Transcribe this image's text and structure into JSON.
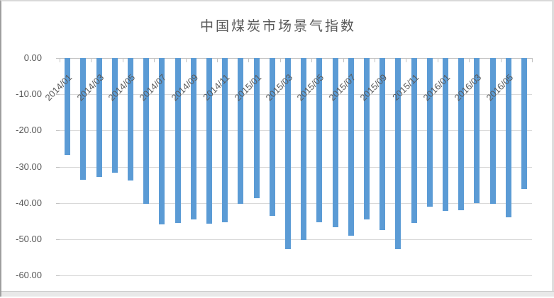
{
  "chart_data": {
    "type": "bar",
    "title": "中国煤炭市场景气指数",
    "categories": [
      "2014/01",
      "2014/02",
      "2014/03",
      "2014/04",
      "2014/05",
      "2014/06",
      "2014/07",
      "2014/08",
      "2014/09",
      "2014/10",
      "2014/11",
      "2014/12",
      "2015/01",
      "2015/02",
      "2015/03",
      "2015/04",
      "2015/05",
      "2015/06",
      "2015/07",
      "2015/08",
      "2015/09",
      "2015/10",
      "2015/11",
      "2015/12",
      "2016/01",
      "2016/02",
      "2016/03",
      "2016/04",
      "2016/05",
      "2016/06"
    ],
    "values": [
      -26.8,
      -33.6,
      -32.8,
      -31.6,
      -33.8,
      -40.2,
      -45.9,
      -45.5,
      -44.5,
      -45.7,
      -45.3,
      -40.2,
      -38.7,
      -43.6,
      -52.7,
      -50.2,
      -45.3,
      -46.7,
      -49.0,
      -44.5,
      -47.5,
      -52.7,
      -45.5,
      -41.0,
      -42.2,
      -42.0,
      -40.0,
      -40.2,
      -43.9,
      -36.1
    ],
    "xlabel": "",
    "ylabel": "",
    "ylim": [
      -60,
      0
    ],
    "y_tick_step": 10,
    "y_tick_labels": [
      "0.00",
      "-10.00",
      "-20.00",
      "-30.00",
      "-40.00",
      "-50.00",
      "-60.00"
    ],
    "x_tick_labels": [
      "2014/01",
      "2014/03",
      "2014/05",
      "2014/07",
      "2014/09",
      "2014/11",
      "2015/01",
      "2015/03",
      "2015/05",
      "2015/07",
      "2015/09",
      "2015/11",
      "2016/01",
      "2016/03",
      "2016/05"
    ],
    "x_label_interval": 2,
    "grid": true,
    "legend": false,
    "bar_color": "#5b9bd5",
    "gridline_color": "#d9d9d9",
    "text_color": "#595959"
  }
}
